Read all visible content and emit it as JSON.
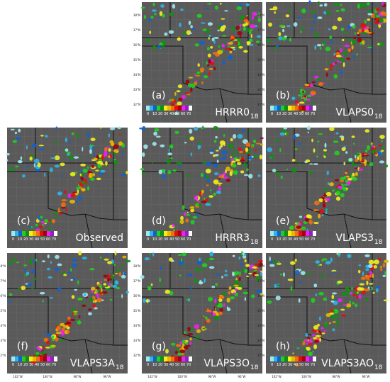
{
  "panels": [
    {
      "letter": "(a)",
      "name": "HRRR0",
      "subscript": "18"
    },
    {
      "letter": "(b)",
      "name": "VLAPS0",
      "subscript": "18"
    },
    {
      "letter": "(c)",
      "name": "Observed"
    },
    {
      "letter": "(d)",
      "name": "HRRR3",
      "subscript": "18"
    },
    {
      "letter": "(e)",
      "name": "VLAPS3",
      "subscript": "18"
    },
    {
      "letter": "(f)",
      "name": "VLAPS3A",
      "subscript": "18"
    },
    {
      "letter": "(g)",
      "name": "VLAPS3O",
      "subscript": "18"
    },
    {
      "letter": "(h)",
      "name": "VLAPS3AO",
      "subscript": "18"
    }
  ],
  "colorbar": {
    "ticks": [
      0,
      10,
      20,
      30,
      40,
      50,
      60,
      70
    ]
  },
  "latitude_labels": [
    "38°N",
    "37°N",
    "36°N",
    "35°N",
    "34°N",
    "33°N",
    "32°N"
  ],
  "longitude_labels": [
    "102°W",
    "100°W",
    "98°W",
    "96°W"
  ]
}
